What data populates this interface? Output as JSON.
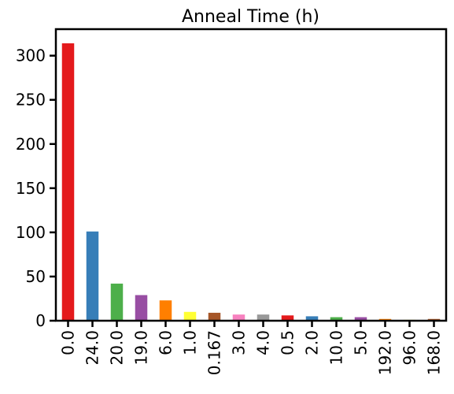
{
  "chart_data": {
    "type": "bar",
    "title": "Anneal Time (h)",
    "xlabel": "",
    "ylabel": "",
    "categories": [
      "0.0",
      "24.0",
      "20.0",
      "19.0",
      "6.0",
      "1.0",
      "0.167",
      "3.0",
      "4.0",
      "0.5",
      "2.0",
      "10.0",
      "5.0",
      "192.0",
      "96.0",
      "168.0"
    ],
    "values": [
      314,
      101,
      42,
      29,
      23,
      10,
      9,
      7,
      7,
      6,
      5,
      4,
      4,
      2,
      1,
      2
    ],
    "colors": [
      "#e41a1c",
      "#377eb8",
      "#4daf4a",
      "#984ea3",
      "#ff7f00",
      "#ffff33",
      "#a65628",
      "#f781bf",
      "#999999",
      "#e41a1c",
      "#377eb8",
      "#4daf4a",
      "#984ea3",
      "#ff7f00",
      "#ffff33",
      "#a65628"
    ],
    "ylim": [
      0,
      330
    ],
    "yticks": [
      0,
      50,
      100,
      150,
      200,
      250,
      300
    ],
    "grid": false,
    "legend": "none"
  }
}
